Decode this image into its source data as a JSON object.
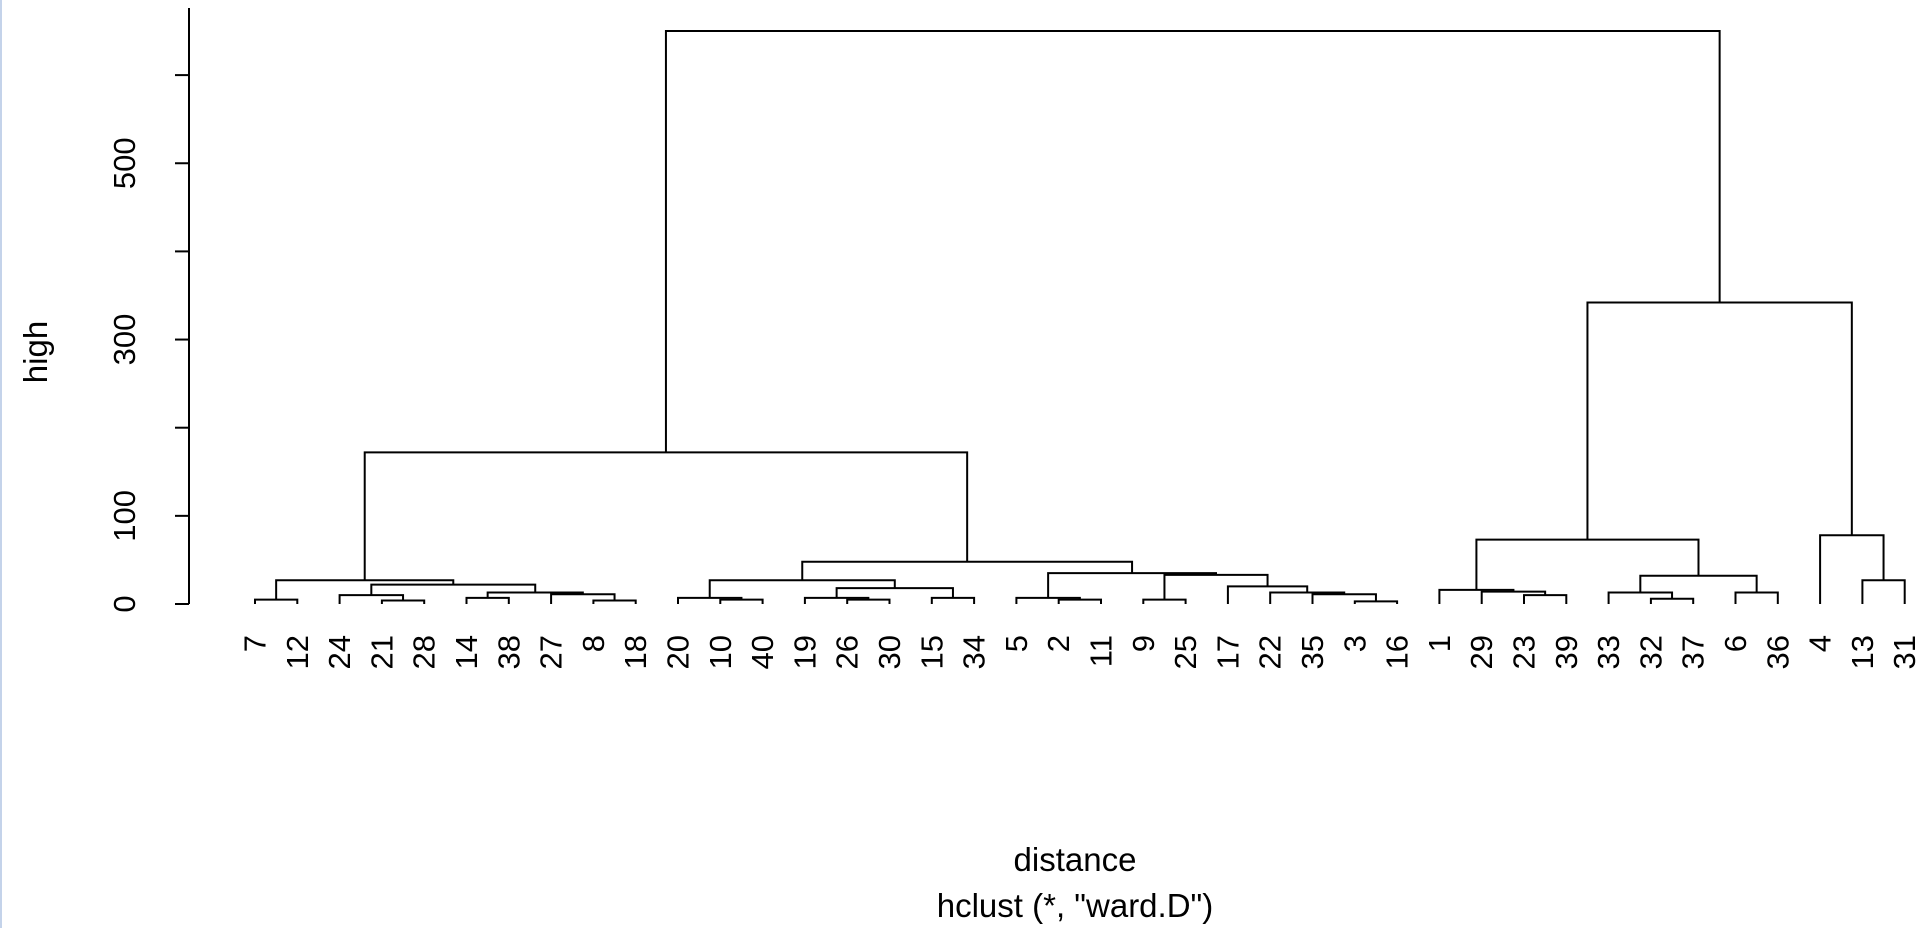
{
  "chart_data": {
    "type": "dendrogram",
    "xlabel": "distance",
    "sub": "hclust (*, \"ward.D\")",
    "ylabel": "high",
    "ylim": [
      0,
      605
    ],
    "yticks": [
      0,
      100,
      200,
      300,
      400,
      500,
      600
    ],
    "ytick_labels": [
      "0",
      "100",
      "",
      "300",
      "",
      "500",
      ""
    ],
    "leaves": [
      "7",
      "12",
      "24",
      "21",
      "28",
      "14",
      "38",
      "27",
      "8",
      "18",
      "20",
      "10",
      "40",
      "19",
      "26",
      "30",
      "15",
      "34",
      "5",
      "2",
      "11",
      "9",
      "25",
      "17",
      "22",
      "35",
      "3",
      "16",
      "1",
      "29",
      "23",
      "39",
      "33",
      "32",
      "37",
      "6",
      "36",
      "4",
      "13",
      "31"
    ],
    "merges": [
      {
        "a": "7",
        "b": "12",
        "h": 5
      },
      {
        "a": "21",
        "b": "28",
        "h": 4
      },
      {
        "a": "24",
        "b": "21|28",
        "h": 10
      },
      {
        "a": "14",
        "b": "38",
        "h": 7
      },
      {
        "a": "8",
        "b": "18",
        "h": 4
      },
      {
        "a": "27",
        "b": "8|18",
        "h": 11
      },
      {
        "a": "14|38",
        "b": "27|8|18",
        "h": 13
      },
      {
        "a": "24|21|28",
        "b": "14|38|27|8|18",
        "h": 22
      },
      {
        "a": "7|12",
        "b": "24|21|28|14|38|27|8|18",
        "h": 27
      },
      {
        "a": "10",
        "b": "40",
        "h": 5
      },
      {
        "a": "20",
        "b": "10|40",
        "h": 7
      },
      {
        "a": "26",
        "b": "30",
        "h": 5
      },
      {
        "a": "19",
        "b": "26|30",
        "h": 7
      },
      {
        "a": "15",
        "b": "34",
        "h": 7
      },
      {
        "a": "19|26|30",
        "b": "15|34",
        "h": 18
      },
      {
        "a": "20|10|40",
        "b": "19|26|30|15|34",
        "h": 27
      },
      {
        "a": "2",
        "b": "11",
        "h": 5
      },
      {
        "a": "5",
        "b": "2|11",
        "h": 7
      },
      {
        "a": "9",
        "b": "25",
        "h": 5
      },
      {
        "a": "3",
        "b": "16",
        "h": 3
      },
      {
        "a": "35",
        "b": "3|16",
        "h": 11
      },
      {
        "a": "22",
        "b": "35|3|16",
        "h": 13
      },
      {
        "a": "17",
        "b": "22|35|3|16",
        "h": 20
      },
      {
        "a": "9|25",
        "b": "17|22|35|3|16",
        "h": 33
      },
      {
        "a": "5|2|11",
        "b": "9|25|17|22|35|3|16",
        "h": 35
      },
      {
        "a": "20|10|40|19|26|30|15|34",
        "b": "5|2|11|9|25|17|22|35|3|16",
        "h": 48
      },
      {
        "a": "7|12|24|21|28|14|38|27|8|18",
        "b": "20|10|40|19|26|30|15|34|5|2|11|9|25|17|22|35|3|16",
        "h": 172
      },
      {
        "a": "23",
        "b": "39",
        "h": 10
      },
      {
        "a": "29",
        "b": "23|39",
        "h": 14
      },
      {
        "a": "1",
        "b": "29|23|39",
        "h": 16
      },
      {
        "a": "32",
        "b": "37",
        "h": 6
      },
      {
        "a": "33",
        "b": "32|37",
        "h": 13
      },
      {
        "a": "6",
        "b": "36",
        "h": 13
      },
      {
        "a": "33|32|37",
        "b": "6|36",
        "h": 32
      },
      {
        "a": "1|29|23|39",
        "b": "33|32|37|6|36",
        "h": 73
      },
      {
        "a": "13",
        "b": "31",
        "h": 27
      },
      {
        "a": "4",
        "b": "13|31",
        "h": 78
      },
      {
        "a": "1|29|23|39|33|32|37|6|36",
        "b": "4|13|31",
        "h": 342
      },
      {
        "a": "7|12|24|21|28|14|38|27|8|18|20|10|40|19|26|30|15|34|5|2|11|9|25|17|22|35|3|16",
        "b": "1|29|23|39|33|32|37|6|36|4|13|31",
        "h": 650
      }
    ]
  }
}
